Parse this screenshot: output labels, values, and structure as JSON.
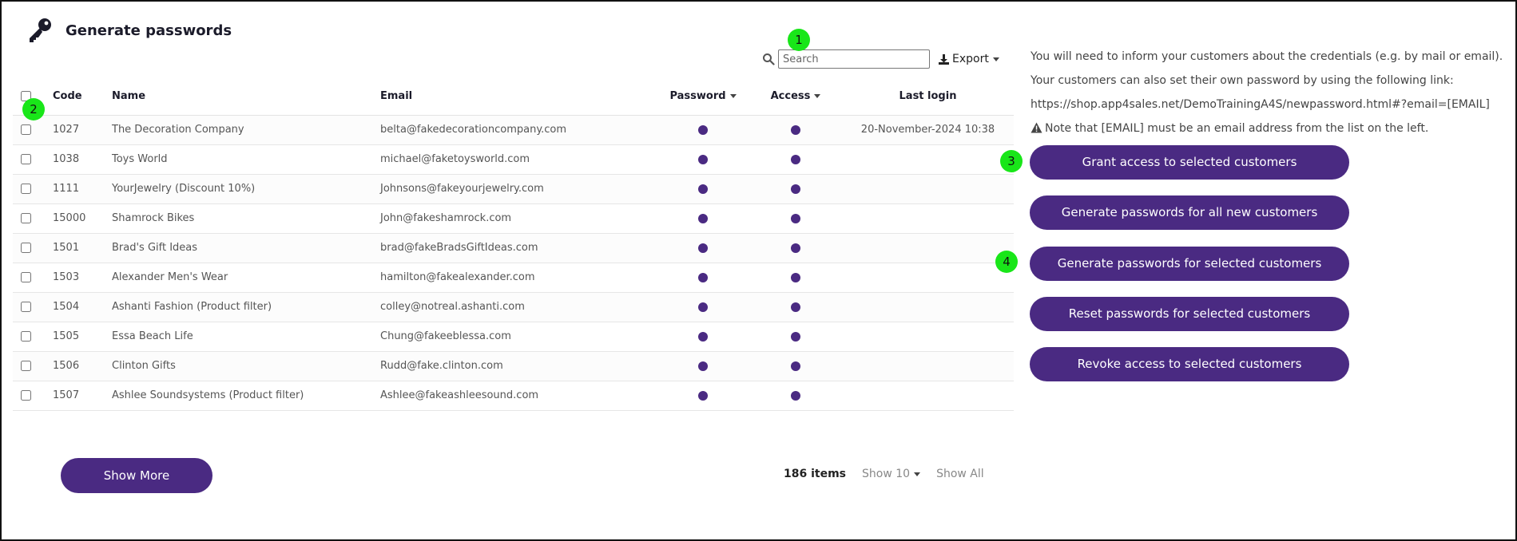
{
  "header": {
    "title": "Generate passwords",
    "icon": "key-icon"
  },
  "toolbar": {
    "search_placeholder": "Search",
    "export_label": "Export"
  },
  "table": {
    "columns": {
      "code": "Code",
      "name": "Name",
      "email": "Email",
      "password": "Password",
      "access": "Access",
      "last_login": "Last login"
    },
    "rows": [
      {
        "code": "1027",
        "name": "The Decoration Company",
        "email": "belta@fakedecorationcompany.com",
        "last_login": "20-November-2024 10:38"
      },
      {
        "code": "1038",
        "name": "Toys World",
        "email": "michael@faketoysworld.com",
        "last_login": ""
      },
      {
        "code": "1111",
        "name": "YourJewelry (Discount 10%)",
        "email": "Johnsons@fakeyourjewelry.com",
        "last_login": ""
      },
      {
        "code": "15000",
        "name": "Shamrock Bikes",
        "email": "John@fakeshamrock.com",
        "last_login": ""
      },
      {
        "code": "1501",
        "name": "Brad's Gift Ideas",
        "email": "brad@fakeBradsGiftIdeas.com",
        "last_login": ""
      },
      {
        "code": "1503",
        "name": "Alexander Men's Wear",
        "email": "hamilton@fakealexander.com",
        "last_login": ""
      },
      {
        "code": "1504",
        "name": "Ashanti Fashion (Product filter)",
        "email": "colley@notreal.ashanti.com",
        "last_login": ""
      },
      {
        "code": "1505",
        "name": "Essa Beach Life",
        "email": "Chung@fakeeblessa.com",
        "last_login": ""
      },
      {
        "code": "1506",
        "name": "Clinton Gifts",
        "email": "Rudd@fake.clinton.com",
        "last_login": ""
      },
      {
        "code": "1507",
        "name": "Ashlee Soundsystems (Product filter)",
        "email": "Ashlee@fakeashleesound.com",
        "last_login": ""
      }
    ]
  },
  "info": {
    "line1": "You will need to inform your customers about the credentials (e.g. by mail or email).",
    "line2": "Your customers can also set their own password by using the following link:",
    "line3": "https://shop.app4sales.net/DemoTrainingA4S/newpassword.html#?email=[EMAIL]",
    "note": "Note that [EMAIL] must be an email address from the list on the left."
  },
  "actions": {
    "grant": "Grant access to selected customers",
    "generate_all": "Generate passwords for all new customers",
    "generate_selected": "Generate passwords for selected customers",
    "reset": "Reset passwords for selected customers",
    "revoke": "Revoke access to selected customers"
  },
  "footer": {
    "show_more": "Show More",
    "item_count": "186 items",
    "show_n": "Show 10",
    "show_all": "Show All"
  },
  "badges": [
    "1",
    "2",
    "3",
    "4"
  ],
  "colors": {
    "primary": "#4a2a82",
    "badge": "#19e619"
  }
}
